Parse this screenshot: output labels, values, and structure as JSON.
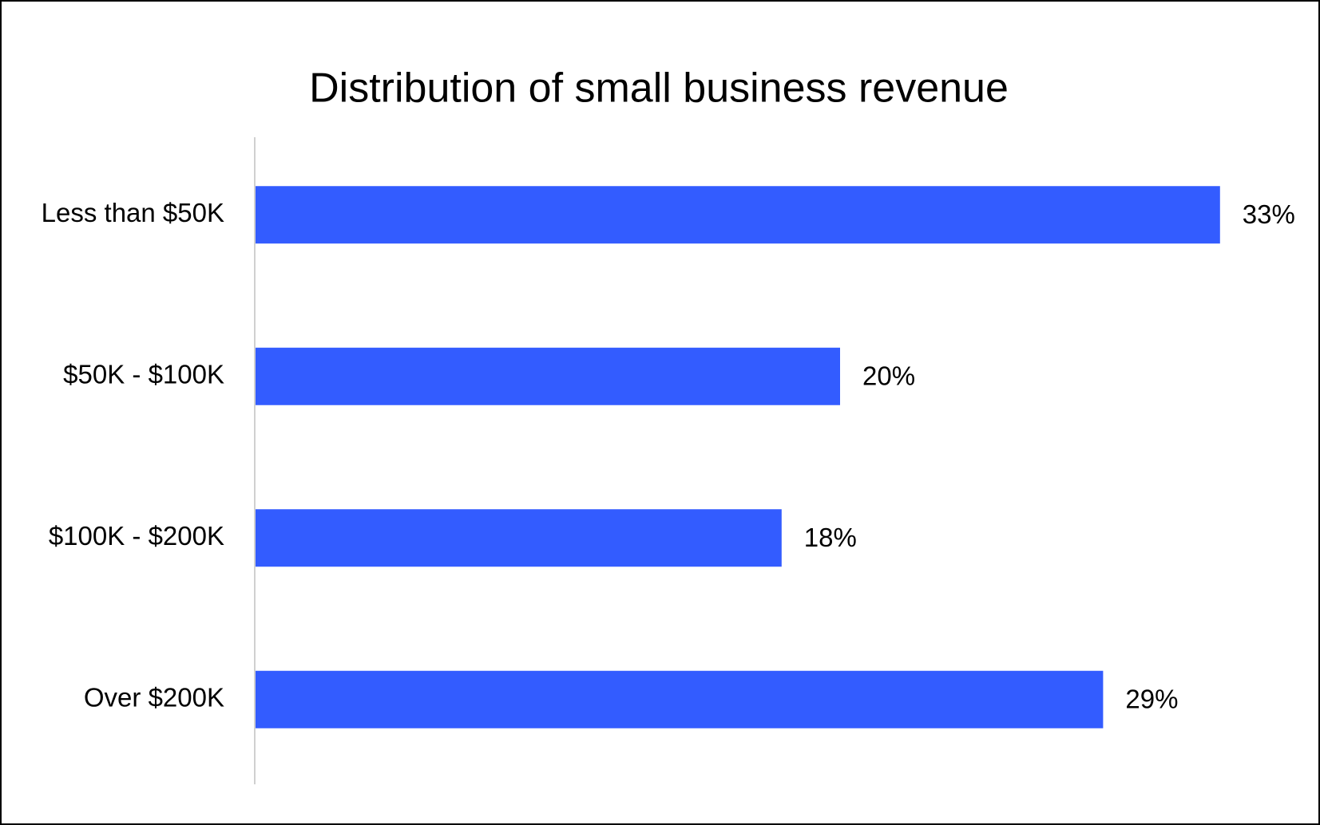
{
  "chart_data": {
    "type": "bar",
    "orientation": "horizontal",
    "title": "Distribution of small business revenue",
    "categories": [
      "Less than $50K",
      "$50K - $100K",
      "$100K - $200K",
      "Over $200K"
    ],
    "values": [
      33,
      20,
      18,
      29
    ],
    "value_labels": [
      "33%",
      "20%",
      "18%",
      "29%"
    ],
    "color": "#335cff",
    "xlim": [
      0,
      35
    ],
    "grid": false
  }
}
